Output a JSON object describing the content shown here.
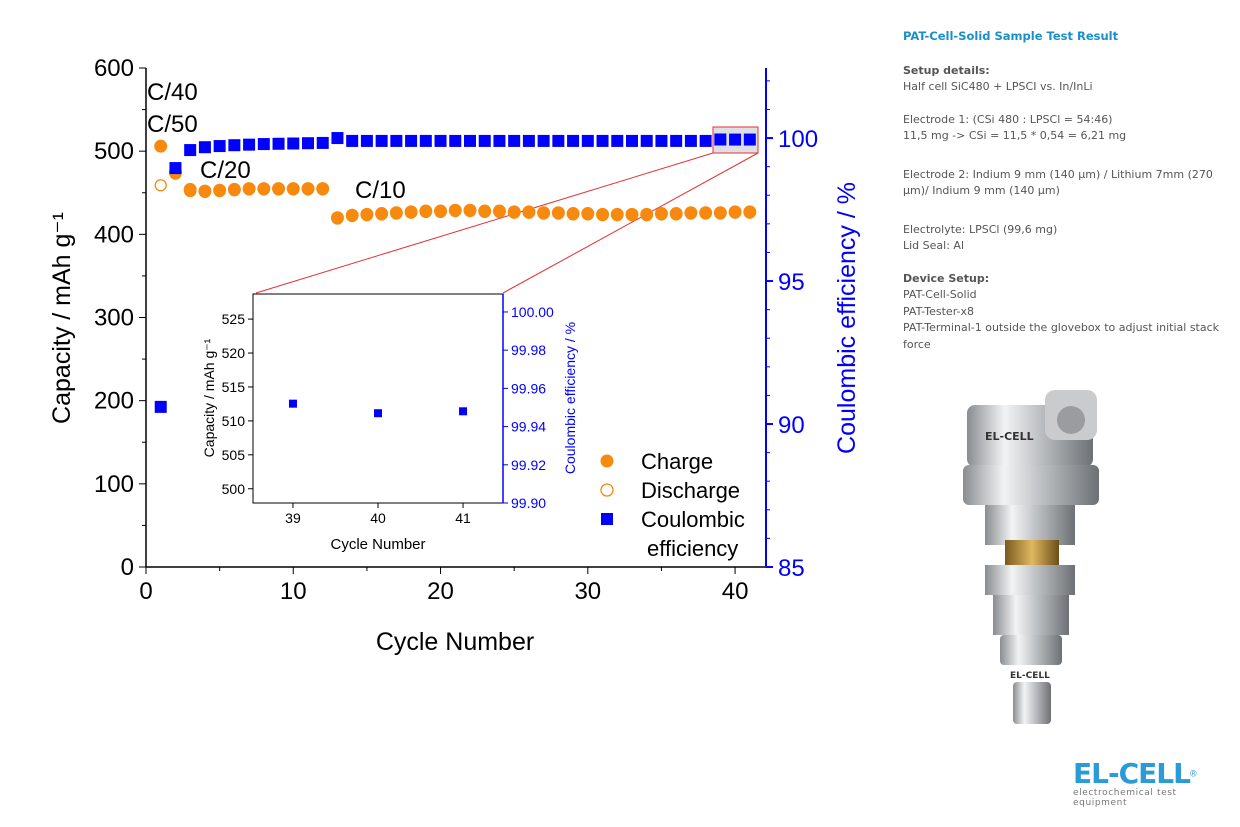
{
  "side_panel": {
    "title": "PAT-Cell-Solid Sample Test Result",
    "setup_heading": "Setup details:",
    "setup_line": "Half cell SiC480 + LPSCI vs. In/InLi",
    "electrode1_line1": "Electrode 1: (CSi 480 : LPSCl = 54:46)",
    "electrode1_line2": "11,5 mg -> CSi = 11,5 * 0,54 = 6,21 mg",
    "electrode2": "Electrode 2: Indium 9 mm (140 µm) / Lithium 7mm (270 µm)/ Indium 9 mm (140 µm)",
    "electrolyte": "Electrolyte: LPSCl (99,6 mg)",
    "lid_seal": "Lid Seal: Al",
    "device_heading": "Device Setup:",
    "device_items": [
      "PAT-Cell-Solid",
      "PAT-Tester-x8",
      "PAT-Terminal-1 outside the glovebox to adjust initial stack force"
    ]
  },
  "device_image": {
    "label": "EL-CELL"
  },
  "logo": {
    "word": "EL-CELL",
    "registered": "®",
    "tagline": "electrochemical test equipment"
  },
  "colors": {
    "charge": "#f7890e",
    "coulombic": "#0000ff",
    "zoom_lines": "#e53030",
    "title": "#1a8fc9"
  },
  "chart_data": [
    {
      "type": "scatter",
      "xlabel": "Cycle Number",
      "ylabel": "Capacity / mAh g⁻¹",
      "y2label": "Coulombic efficiency / %",
      "xlim": [
        0,
        42.1
      ],
      "ylim": [
        0,
        600
      ],
      "y2lim": [
        85,
        102.45
      ],
      "xticks": [
        0,
        10,
        20,
        30,
        40
      ],
      "yticks": [
        0,
        100,
        200,
        300,
        400,
        500,
        600
      ],
      "y2ticks": [
        85,
        90,
        95,
        100
      ],
      "grid": false,
      "legend_position": "bottom-right",
      "legend": [
        "Charge",
        "Discharge",
        "Coulombic",
        "efficiency"
      ],
      "annotations": [
        "C/40",
        "C/50",
        "C/20",
        "C/10"
      ],
      "x": [
        1,
        2,
        3,
        4,
        5,
        6,
        7,
        8,
        9,
        10,
        11,
        12,
        13,
        14,
        15,
        16,
        17,
        18,
        19,
        20,
        21,
        22,
        23,
        24,
        25,
        26,
        27,
        28,
        29,
        30,
        31,
        32,
        33,
        34,
        35,
        36,
        37,
        38,
        39,
        40,
        41
      ],
      "series": [
        {
          "name": "Charge",
          "axis": "left",
          "marker": "filled-circle",
          "values": [
            506,
            475,
            454,
            452,
            453,
            454,
            455,
            455,
            455,
            455,
            455,
            455,
            420,
            423,
            424,
            425,
            426,
            427,
            428,
            428,
            429,
            429,
            428,
            428,
            427,
            427,
            426,
            426,
            425,
            425,
            424,
            424,
            424,
            424,
            425,
            425,
            426,
            426,
            426,
            427,
            427
          ]
        },
        {
          "name": "Discharge",
          "axis": "left",
          "marker": "open-circle",
          "values": [
            459,
            473,
            452,
            451,
            452,
            453,
            454,
            454,
            454,
            454,
            454,
            454,
            419,
            422,
            423,
            424,
            425,
            426,
            427,
            427,
            428,
            428,
            427,
            427,
            426,
            426,
            425,
            425,
            424,
            424,
            423,
            423,
            423,
            423,
            424,
            424,
            425,
            425,
            425,
            426,
            426
          ]
        },
        {
          "name": "Coulombic efficiency",
          "axis": "right",
          "marker": "filled-square",
          "values": [
            90.6,
            98.95,
            99.58,
            99.68,
            99.72,
            99.75,
            99.77,
            99.79,
            99.8,
            99.81,
            99.82,
            99.83,
            100.0,
            99.9,
            99.9,
            99.9,
            99.9,
            99.9,
            99.9,
            99.9,
            99.9,
            99.9,
            99.9,
            99.9,
            99.9,
            99.9,
            99.9,
            99.9,
            99.9,
            99.9,
            99.9,
            99.9,
            99.9,
            99.9,
            99.9,
            99.9,
            99.9,
            99.9,
            99.95,
            99.947,
            99.948
          ]
        }
      ]
    },
    {
      "type": "scatter",
      "role": "inset",
      "xlabel": "Cycle Number",
      "ylabel": "Capacity / mAh g⁻¹",
      "y2label": "Coulombic efficiency / %",
      "xlim": [
        38.53,
        41.47
      ],
      "ylim": [
        497.9,
        528.7
      ],
      "y2lim": [
        99.9,
        100.0094
      ],
      "xticks": [
        39,
        40,
        41
      ],
      "yticks": [
        500,
        505,
        510,
        515,
        520,
        525
      ],
      "y2ticks": [
        "99.90",
        "99.92",
        "99.94",
        "99.96",
        "99.98",
        "100.00"
      ],
      "x": [
        39,
        40,
        41
      ],
      "series": [
        {
          "name": "Coulombic efficiency",
          "axis": "right",
          "values": [
            99.952,
            99.947,
            99.948
          ]
        }
      ]
    }
  ]
}
